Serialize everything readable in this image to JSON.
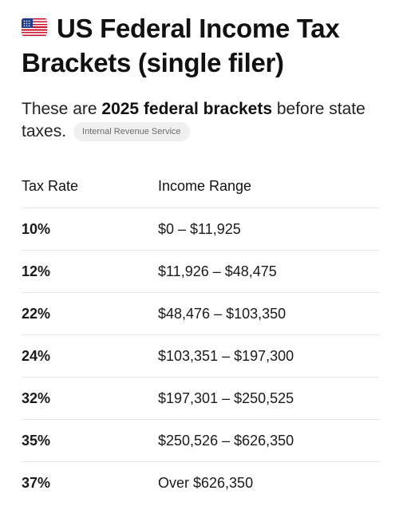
{
  "header": {
    "flag_icon": "us-flag-icon",
    "title": "US Federal Income Tax Brackets (single filer)"
  },
  "intro": {
    "prefix": "These are ",
    "emphasis": "2025 federal brackets",
    "suffix": " before state taxes.",
    "source_label": "Internal Revenue Service"
  },
  "table": {
    "headers": {
      "rate": "Tax Rate",
      "range": "Income Range"
    },
    "rows": [
      {
        "rate": "10%",
        "range": "$0 – $11,925"
      },
      {
        "rate": "12%",
        "range": "$11,926 – $48,475"
      },
      {
        "rate": "22%",
        "range": "$48,476 – $103,350"
      },
      {
        "rate": "24%",
        "range": "$103,351 – $197,300"
      },
      {
        "rate": "32%",
        "range": "$197,301 – $250,525"
      },
      {
        "rate": "35%",
        "range": "$250,526 – $626,350"
      },
      {
        "rate": "37%",
        "range": "Over $626,350"
      }
    ]
  },
  "colors": {
    "flag_red": "#c8102e",
    "flag_blue": "#1f3a93",
    "pill_background": "#f0f0f0",
    "divider": "#e6e6e6"
  }
}
